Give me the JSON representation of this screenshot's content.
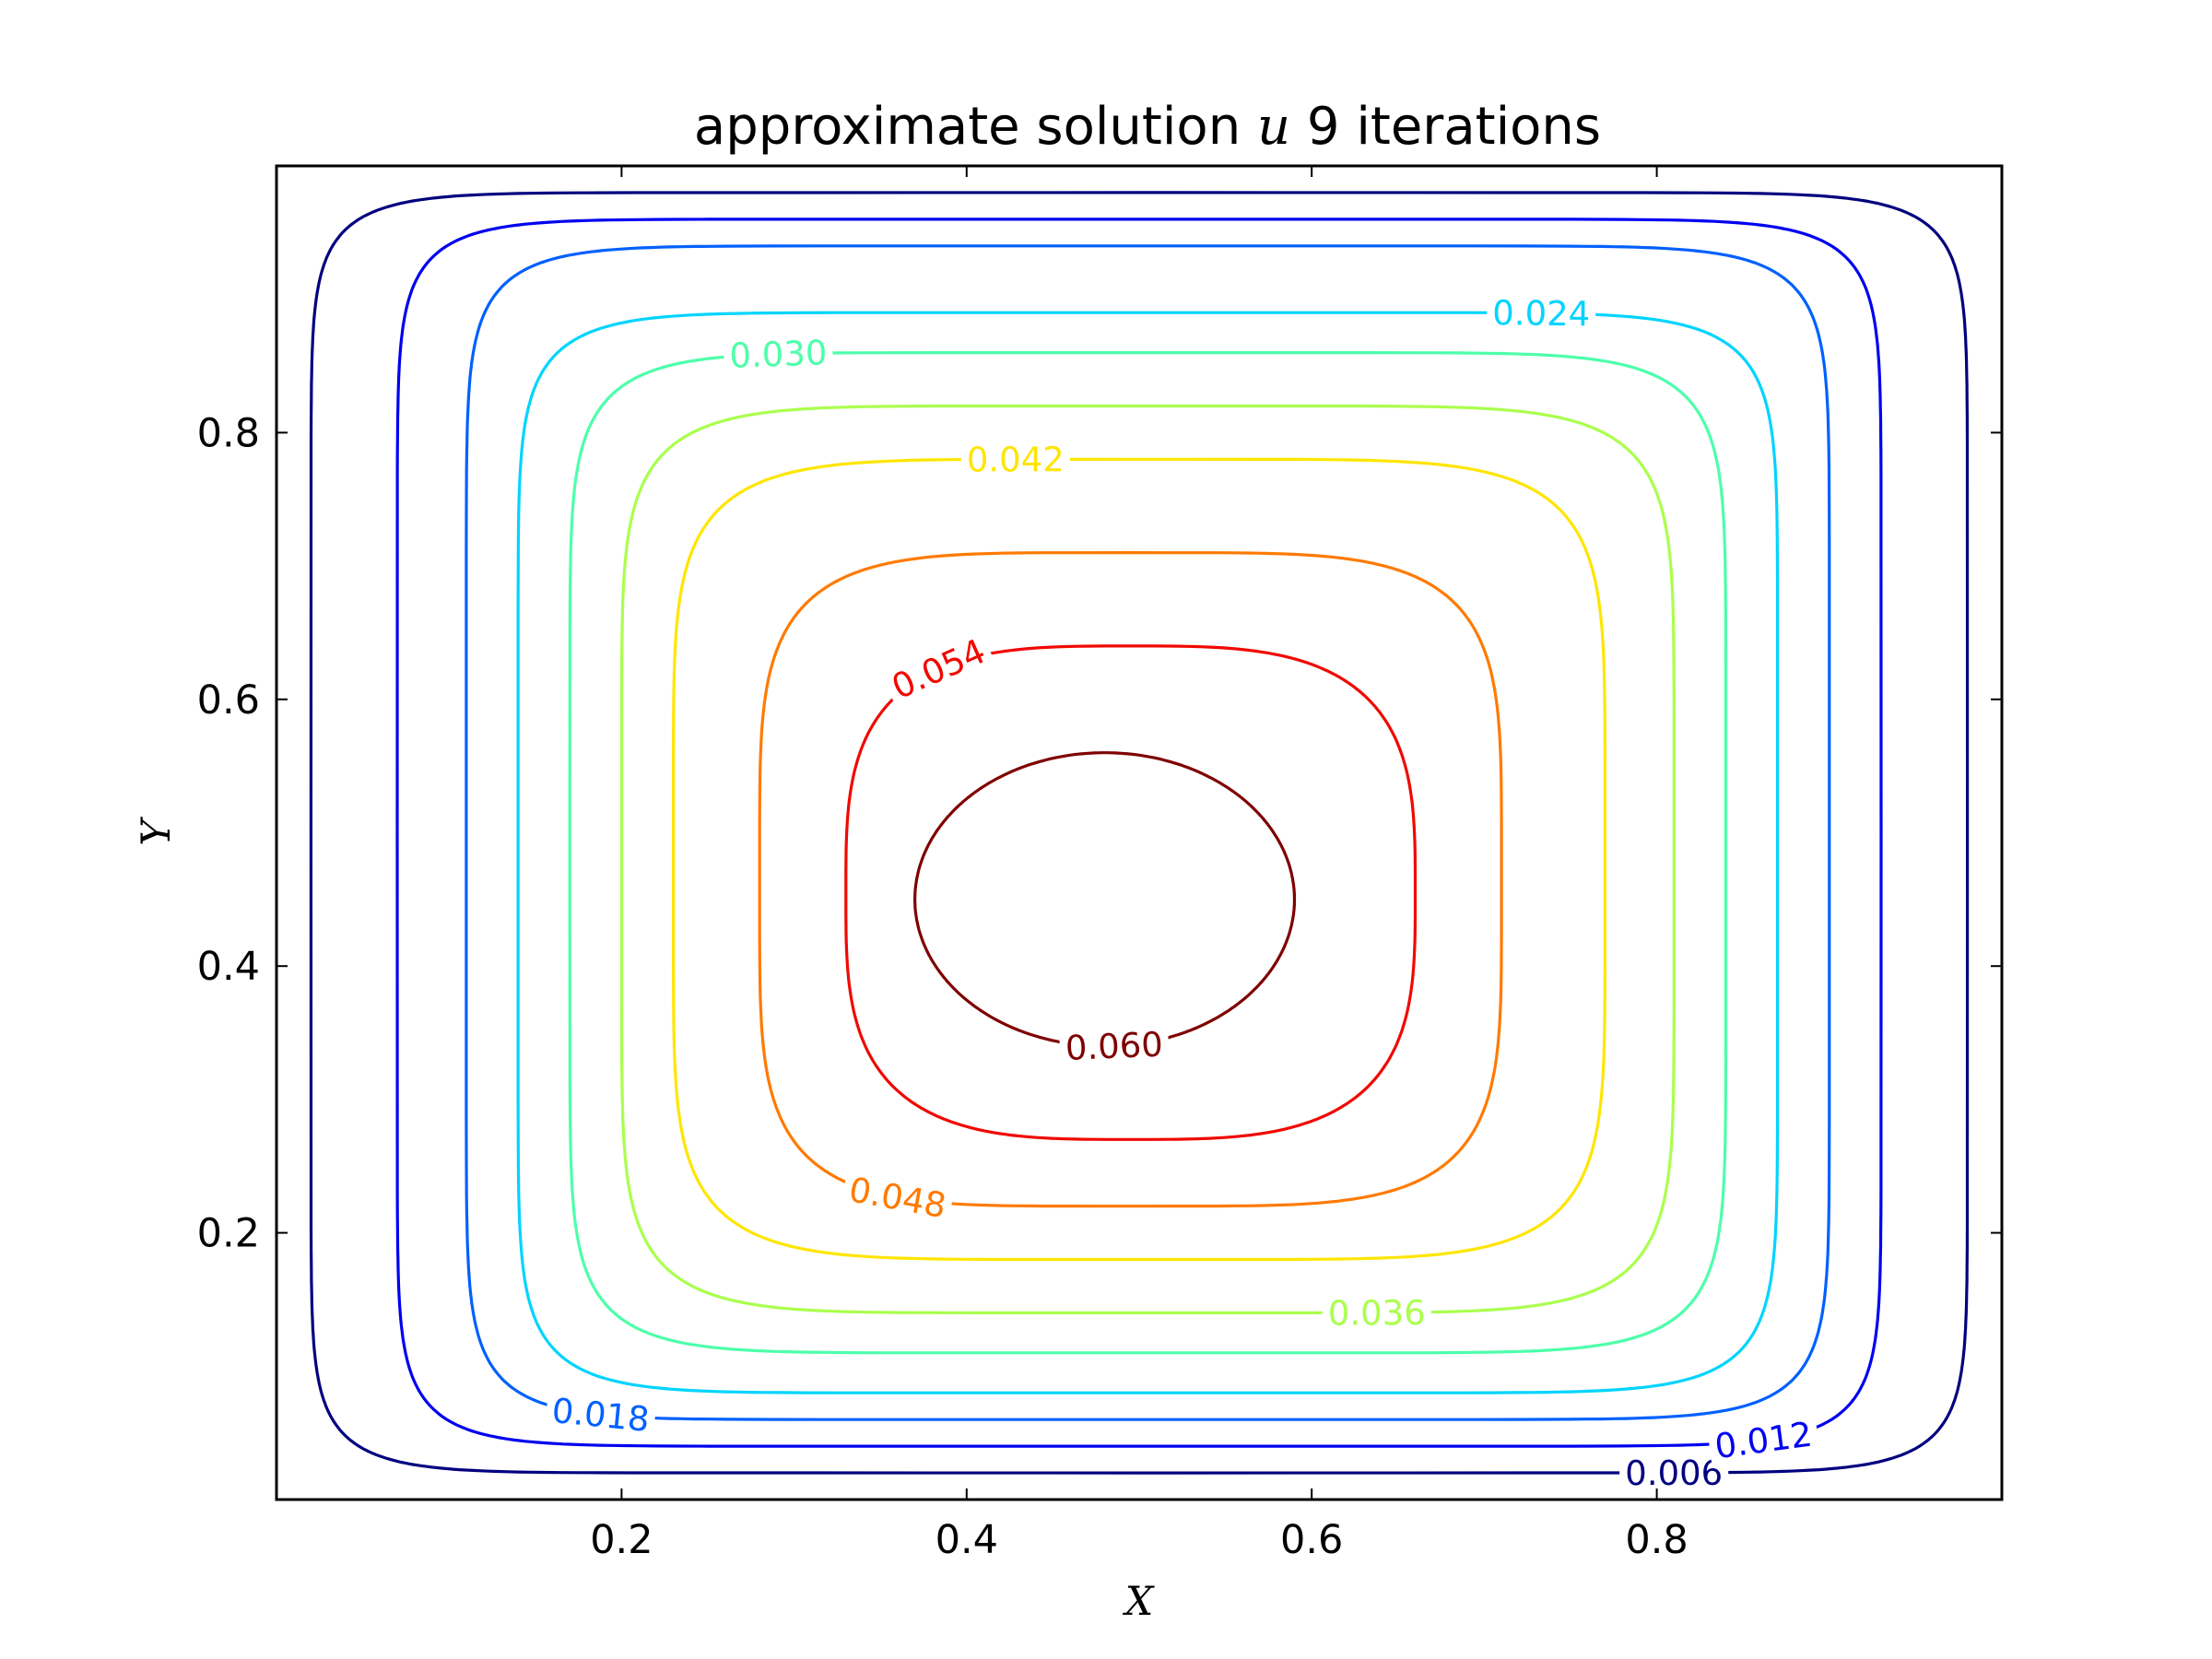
{
  "chart_data": {
    "type": "contour",
    "title": "approximate solution",
    "title_math": "u",
    "title_suffix": "9 iterations",
    "xlabel": "X",
    "ylabel": "Y",
    "xlim": [
      0.0,
      1.0
    ],
    "ylim": [
      0.0,
      1.0
    ],
    "xticks": [
      0.2,
      0.4,
      0.6,
      0.8
    ],
    "yticks": [
      0.2,
      0.4,
      0.6,
      0.8
    ],
    "xtick_labels": [
      "0.2",
      "0.4",
      "0.6",
      "0.8"
    ],
    "ytick_labels": [
      "0.2",
      "0.4",
      "0.6",
      "0.8"
    ],
    "grid": false,
    "colormap": "jet",
    "levels": [
      {
        "value": 0.006,
        "label": "0.006",
        "color": "#00007f",
        "labeled": true,
        "x_extent": [
          0.02,
          0.98
        ],
        "y_extent": [
          0.02,
          0.98
        ]
      },
      {
        "value": 0.012,
        "label": "0.012",
        "color": "#0000f1",
        "labeled": true,
        "x_extent": [
          0.07,
          0.93
        ],
        "y_extent": [
          0.04,
          0.96
        ]
      },
      {
        "value": 0.018,
        "label": "0.018",
        "color": "#0060ff",
        "labeled": true,
        "x_extent": [
          0.11,
          0.9
        ],
        "y_extent": [
          0.06,
          0.94
        ]
      },
      {
        "value": 0.024,
        "label": "0.024",
        "color": "#00d4ff",
        "labeled": true,
        "x_extent": [
          0.14,
          0.87
        ],
        "y_extent": [
          0.08,
          0.89
        ]
      },
      {
        "value": 0.03,
        "label": "0.030",
        "color": "#4dffaa",
        "labeled": true,
        "x_extent": [
          0.17,
          0.84
        ],
        "y_extent": [
          0.11,
          0.86
        ]
      },
      {
        "value": 0.036,
        "label": "0.036",
        "color": "#aaff4d",
        "labeled": true,
        "x_extent": [
          0.2,
          0.81
        ],
        "y_extent": [
          0.14,
          0.82
        ]
      },
      {
        "value": 0.042,
        "label": "0.042",
        "color": "#ffe500",
        "labeled": true,
        "x_extent": [
          0.23,
          0.77
        ],
        "y_extent": [
          0.18,
          0.78
        ]
      },
      {
        "value": 0.048,
        "label": "0.048",
        "color": "#ff7a00",
        "labeled": true,
        "x_extent": [
          0.28,
          0.71
        ],
        "y_extent": [
          0.22,
          0.71
        ]
      },
      {
        "value": 0.054,
        "label": "0.054",
        "color": "#f10800",
        "labeled": true,
        "x_extent": [
          0.33,
          0.66
        ],
        "y_extent": [
          0.27,
          0.64
        ]
      },
      {
        "value": 0.06,
        "label": "0.060",
        "color": "#7f0000",
        "labeled": true,
        "x_extent": [
          0.37,
          0.59
        ],
        "y_extent": [
          0.34,
          0.56
        ]
      }
    ]
  }
}
